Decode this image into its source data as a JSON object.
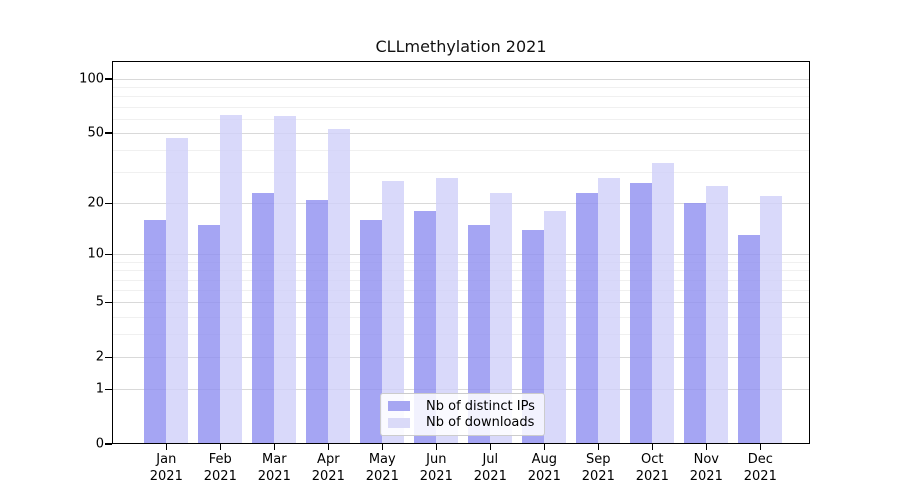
{
  "chart_data": {
    "type": "bar",
    "title": "CLLmethylation 2021",
    "categories": [
      "Jan",
      "Feb",
      "Mar",
      "Apr",
      "May",
      "Jun",
      "Jul",
      "Aug",
      "Sep",
      "Oct",
      "Nov",
      "Dec"
    ],
    "x_labels": [
      [
        "Jan",
        "2021"
      ],
      [
        "Feb",
        "2021"
      ],
      [
        "Mar",
        "2021"
      ],
      [
        "Apr",
        "2021"
      ],
      [
        "May",
        "2021"
      ],
      [
        "Jun",
        "2021"
      ],
      [
        "Jul",
        "2021"
      ],
      [
        "Aug",
        "2021"
      ],
      [
        "Sep",
        "2021"
      ],
      [
        "Oct",
        "2021"
      ],
      [
        "Nov",
        "2021"
      ],
      [
        "Dec",
        "2021"
      ]
    ],
    "series": [
      {
        "name": "Nb of distinct IPs",
        "color": "#a6a6f2",
        "fill": "rgba(143,143,240,0.8)",
        "values": [
          16,
          15,
          23,
          21,
          16,
          18,
          15,
          14,
          23,
          26,
          20,
          13
        ]
      },
      {
        "name": "Nb of downloads",
        "color": "#dadaf8",
        "fill": "rgba(208,208,249,0.8)",
        "values": [
          47,
          63,
          62,
          53,
          27,
          28,
          23,
          18,
          28,
          34,
          25,
          22
        ]
      }
    ],
    "y_scale": "log1p",
    "y_ticks": [
      0,
      1,
      2,
      5,
      10,
      20,
      50,
      100
    ],
    "y_minor_gridlines": [
      3,
      4,
      6,
      7,
      8,
      9,
      30,
      40,
      60,
      70,
      80,
      90
    ],
    "ylim": [
      0,
      125.8
    ],
    "y_max": 125.8,
    "xlabel": "",
    "ylabel": "",
    "grid": true,
    "legend_position": "lower center"
  }
}
